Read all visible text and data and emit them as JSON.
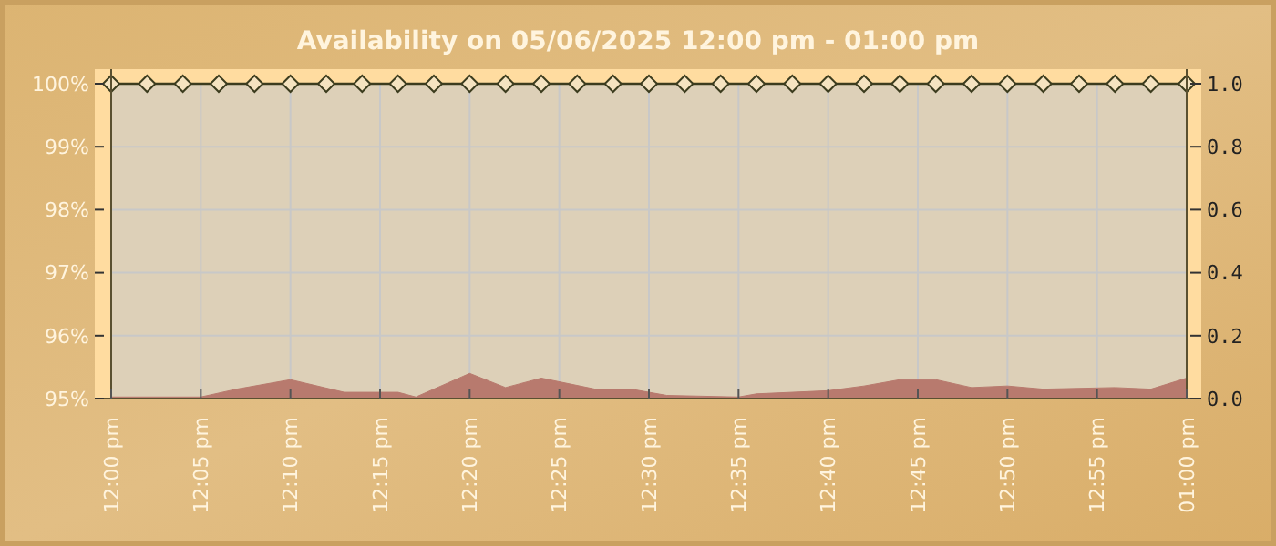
{
  "chart_data": {
    "type": "line",
    "title": "Availability on 05/06/2025 12:00 pm - 01:00 pm",
    "x": [
      "2025-05-06T12:00",
      "2025-05-06T12:02",
      "2025-05-06T12:04",
      "2025-05-06T12:06",
      "2025-05-06T12:08",
      "2025-05-06T12:10",
      "2025-05-06T12:12",
      "2025-05-06T12:14",
      "2025-05-06T12:16",
      "2025-05-06T12:18",
      "2025-05-06T12:20",
      "2025-05-06T12:22",
      "2025-05-06T12:24",
      "2025-05-06T12:26",
      "2025-05-06T12:28",
      "2025-05-06T12:30",
      "2025-05-06T12:32",
      "2025-05-06T12:34",
      "2025-05-06T12:36",
      "2025-05-06T12:38",
      "2025-05-06T12:40",
      "2025-05-06T12:42",
      "2025-05-06T12:44",
      "2025-05-06T12:46",
      "2025-05-06T12:48",
      "2025-05-06T12:50",
      "2025-05-06T12:52",
      "2025-05-06T12:54",
      "2025-05-06T12:56",
      "2025-05-06T12:58",
      "2025-05-06T13:00"
    ],
    "series": [
      {
        "type": "area",
        "axis": "y2",
        "color": "#b87a6e",
        "x": [
          "2025-05-06T12:00",
          "2025-05-06T12:05",
          "2025-05-06T12:07",
          "2025-05-06T12:10",
          "2025-05-06T12:13",
          "2025-05-06T12:16",
          "2025-05-06T12:17",
          "2025-05-06T12:20",
          "2025-05-06T12:22",
          "2025-05-06T12:24",
          "2025-05-06T12:27",
          "2025-05-06T12:29",
          "2025-05-06T12:31",
          "2025-05-06T12:35",
          "2025-05-06T12:36",
          "2025-05-06T12:40",
          "2025-05-06T12:42",
          "2025-05-06T12:44",
          "2025-05-06T12:46",
          "2025-05-06T12:48",
          "2025-05-06T12:50",
          "2025-05-06T12:52",
          "2025-05-06T12:56",
          "2025-05-06T12:58",
          "2025-05-06T13:00"
        ],
        "values": [
          0.005,
          0.005,
          0.03,
          0.06,
          0.02,
          0.02,
          0.005,
          0.08,
          0.035,
          0.065,
          0.03,
          0.03,
          0.01,
          0.005,
          0.015,
          0.025,
          0.04,
          0.06,
          0.06,
          0.035,
          0.04,
          0.03,
          0.035,
          0.03,
          0.065
        ]
      },
      {
        "color": "#3c3c1e",
        "marker": "diamond",
        "values": [
          100,
          100,
          100,
          100,
          100,
          100,
          100,
          100,
          100,
          100,
          100,
          100,
          100,
          100,
          100,
          100,
          100,
          100,
          100,
          100,
          100,
          100,
          100,
          100,
          100,
          100,
          100,
          100,
          100,
          100,
          100
        ]
      }
    ],
    "xlim": [
      "2025-05-06T12:00",
      "2025-05-06T13:00"
    ],
    "xticks": [
      {
        "value": "2025-05-06T12:00",
        "label": "12:00 pm"
      },
      {
        "value": "2025-05-06T12:05",
        "label": "12:05 pm"
      },
      {
        "value": "2025-05-06T12:10",
        "label": "12:10 pm"
      },
      {
        "value": "2025-05-06T12:15",
        "label": "12:15 pm"
      },
      {
        "value": "2025-05-06T12:20",
        "label": "12:20 pm"
      },
      {
        "value": "2025-05-06T12:25",
        "label": "12:25 pm"
      },
      {
        "value": "2025-05-06T12:30",
        "label": "12:30 pm"
      },
      {
        "value": "2025-05-06T12:35",
        "label": "12:35 pm"
      },
      {
        "value": "2025-05-06T12:40",
        "label": "12:40 pm"
      },
      {
        "value": "2025-05-06T12:45",
        "label": "12:45 pm"
      },
      {
        "value": "2025-05-06T12:50",
        "label": "12:50 pm"
      },
      {
        "value": "2025-05-06T12:55",
        "label": "12:55 pm"
      },
      {
        "value": "2025-05-06T13:00",
        "label": "01:00 pm"
      }
    ],
    "ylim": [
      95,
      100
    ],
    "yticks": [
      {
        "value": 95,
        "label": "95%"
      },
      {
        "value": 96,
        "label": "96%"
      },
      {
        "value": 97,
        "label": "97%"
      },
      {
        "value": 98,
        "label": "98%"
      },
      {
        "value": 99,
        "label": "99%"
      },
      {
        "value": 100,
        "label": "100%"
      }
    ],
    "y2lim": [
      0,
      1
    ],
    "y2ticks": [
      {
        "value": 0,
        "label": "0.0"
      },
      {
        "value": 0.2,
        "label": "0.2"
      },
      {
        "value": 0.4,
        "label": "0.4"
      },
      {
        "value": 0.6,
        "label": "0.6"
      },
      {
        "value": 0.8,
        "label": "0.8"
      },
      {
        "value": 1,
        "label": "1.0"
      }
    ],
    "grid": true
  }
}
